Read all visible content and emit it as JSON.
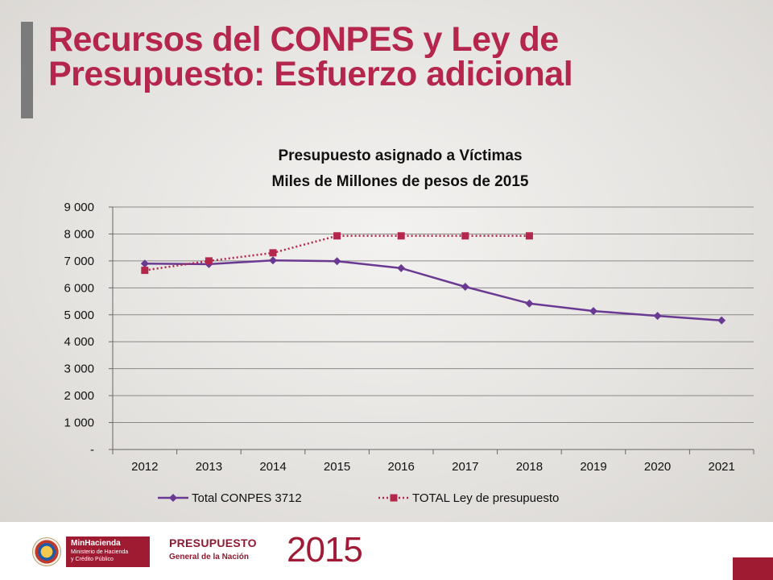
{
  "slide": {
    "title_line1": "Recursos del CONPES y Ley de",
    "title_line2": "Presupuesto: Esfuerzo adicional"
  },
  "footer": {
    "logo_line1": "MinHacienda",
    "logo_line2": "Ministerio de Hacienda",
    "logo_line3": "y Crédito Público",
    "presupuesto_label": "PRESUPUESTO",
    "general_label": "General de la Nación",
    "year_label": "2015",
    "brand_color": "#9e1b32"
  },
  "chart_data": {
    "type": "line",
    "title": "Presupuesto asignado a Víctimas",
    "subtitle": "Miles de Millones de pesos de 2015",
    "xlabel": "",
    "ylabel": "",
    "categories": [
      "2012",
      "2013",
      "2014",
      "2015",
      "2016",
      "2017",
      "2018",
      "2019",
      "2020",
      "2021"
    ],
    "ylim": [
      0,
      9000
    ],
    "yticks": [
      0,
      1000,
      2000,
      3000,
      4000,
      5000,
      6000,
      7000,
      8000,
      9000
    ],
    "ytick_labels": [
      "-",
      "1 000",
      "2 000",
      "3 000",
      "4 000",
      "5 000",
      "6 000",
      "7 000",
      "8 000",
      "9 000"
    ],
    "grid": true,
    "legend_position": "bottom",
    "series": [
      {
        "name": "Total CONPES 3712",
        "color": "#6a3a92",
        "marker": "diamond",
        "line_style": "solid",
        "values": [
          6900,
          6880,
          7020,
          6990,
          6730,
          6040,
          5420,
          5140,
          4960,
          4790
        ]
      },
      {
        "name": "TOTAL Ley de presupuesto",
        "color": "#b5264d",
        "marker": "square",
        "line_style": "dotted",
        "values": [
          6650,
          7000,
          7300,
          7930,
          7930,
          7930,
          7930,
          null,
          null,
          null
        ]
      }
    ]
  }
}
